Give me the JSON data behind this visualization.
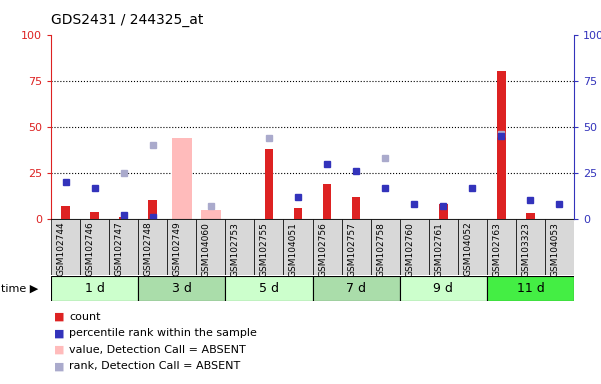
{
  "title": "GDS2431 / 244325_at",
  "samples": [
    "GSM102744",
    "GSM102746",
    "GSM102747",
    "GSM102748",
    "GSM102749",
    "GSM104060",
    "GSM102753",
    "GSM102755",
    "GSM104051",
    "GSM102756",
    "GSM102757",
    "GSM102758",
    "GSM102760",
    "GSM102761",
    "GSM104052",
    "GSM102763",
    "GSM103323",
    "GSM104053"
  ],
  "groups": [
    {
      "label": "1 d",
      "indices": [
        0,
        1,
        2
      ],
      "color": "#ccffcc"
    },
    {
      "label": "3 d",
      "indices": [
        3,
        4,
        5
      ],
      "color": "#aaddaa"
    },
    {
      "label": "5 d",
      "indices": [
        6,
        7,
        8
      ],
      "color": "#ccffcc"
    },
    {
      "label": "7 d",
      "indices": [
        9,
        10,
        11
      ],
      "color": "#aaddaa"
    },
    {
      "label": "9 d",
      "indices": [
        12,
        13,
        14
      ],
      "color": "#ccffcc"
    },
    {
      "label": "11 d",
      "indices": [
        15,
        16,
        17
      ],
      "color": "#44ee44"
    }
  ],
  "count_values": [
    7,
    4,
    1,
    10,
    0,
    0,
    0,
    38,
    6,
    19,
    12,
    0,
    0,
    8,
    0,
    80,
    3,
    0
  ],
  "percentile_values": [
    20,
    17,
    2,
    1,
    0,
    0,
    0,
    0,
    12,
    30,
    26,
    17,
    8,
    7,
    17,
    45,
    10,
    8
  ],
  "absent_bar_values": [
    0,
    0,
    0,
    0,
    44,
    5,
    0,
    0,
    0,
    0,
    0,
    0,
    0,
    0,
    0,
    0,
    0,
    0
  ],
  "absent_rank_values": [
    0,
    0,
    25,
    40,
    0,
    7,
    0,
    44,
    0,
    0,
    0,
    33,
    0,
    0,
    0,
    46,
    0,
    0
  ],
  "bar_color_count": "#dd2222",
  "bar_color_absent": "#ffbbbb",
  "dot_color_percentile": "#3333bb",
  "dot_color_absent_rank": "#aaaacc",
  "ylim": [
    0,
    100
  ],
  "yticks": [
    0,
    25,
    50,
    75,
    100
  ],
  "bg_color": "#ffffff",
  "left_axis_color": "#dd2222",
  "right_axis_color": "#3333bb",
  "legend_items": [
    {
      "color": "#dd2222",
      "label": "count"
    },
    {
      "color": "#3333bb",
      "label": "percentile rank within the sample"
    },
    {
      "color": "#ffbbbb",
      "label": "value, Detection Call = ABSENT"
    },
    {
      "color": "#aaaacc",
      "label": "rank, Detection Call = ABSENT"
    }
  ]
}
